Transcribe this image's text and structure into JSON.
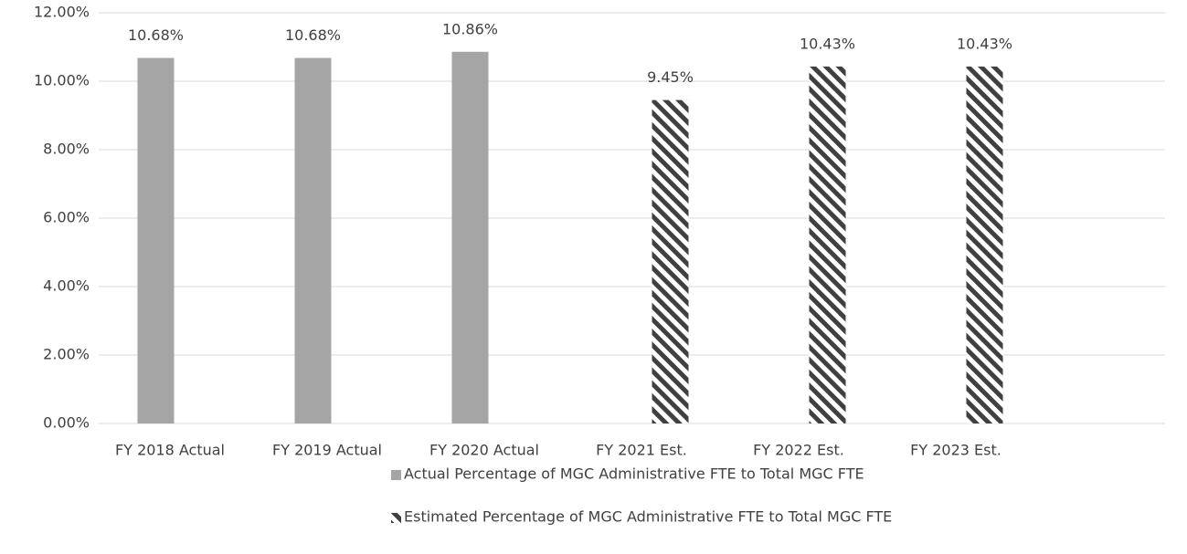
{
  "chart_data": {
    "type": "bar",
    "categories": [
      "FY 2018 Actual",
      "FY 2019 Actual",
      "FY 2020 Actual",
      "FY 2021 Est.",
      "FY 2022 Est.",
      "FY 2023 Est."
    ],
    "series": [
      {
        "name": "Actual Percentage of MGC Administrative FTE to Total MGC FTE",
        "color": "#a5a5a5",
        "pattern": "solid",
        "values": [
          10.68,
          10.68,
          10.86,
          null,
          null,
          null
        ],
        "value_labels": [
          "10.68%",
          "10.68%",
          "10.86%",
          null,
          null,
          null
        ]
      },
      {
        "name": "Estimated Percentage of MGC Administrative FTE to Total MGC FTE",
        "color": "#404040",
        "pattern": "hatch",
        "values": [
          null,
          null,
          null,
          9.45,
          10.43,
          10.43
        ],
        "value_labels": [
          null,
          null,
          null,
          "9.45%",
          "10.43%",
          "10.43%"
        ]
      }
    ],
    "ylim": [
      0,
      12
    ],
    "yticks": [
      {
        "value": 0,
        "label": "0.00%"
      },
      {
        "value": 2,
        "label": "2.00%"
      },
      {
        "value": 4,
        "label": "4.00%"
      },
      {
        "value": 6,
        "label": "6.00%"
      },
      {
        "value": 8,
        "label": "8.00%"
      },
      {
        "value": 10,
        "label": "10.00%"
      },
      {
        "value": 12,
        "label": "12.00%"
      }
    ],
    "grid": true,
    "legend": "bottom"
  }
}
